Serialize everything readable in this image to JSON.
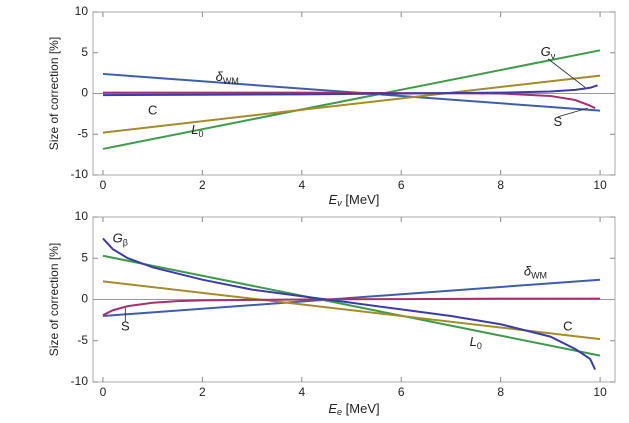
{
  "chart_data": [
    {
      "type": "line",
      "xlabel": {
        "main": "E",
        "sub": "ν",
        "unit": " [MeV]"
      },
      "ylabel": "Size of correction [%]",
      "xlim": [
        -0.2,
        10.3
      ],
      "ylim": [
        -10,
        10
      ],
      "xticks": [
        0,
        2,
        4,
        6,
        8,
        10
      ],
      "yticks": [
        -10,
        -5,
        0,
        5,
        10
      ],
      "series": [
        {
          "name": "δ",
          "name_sub": "WM",
          "color": "#3f5ea8",
          "x": [
            0,
            10
          ],
          "values": [
            2.4,
            -2.1
          ]
        },
        {
          "name": "L",
          "name_sub": "0",
          "color": "#3f9a4c",
          "x": [
            0,
            10
          ],
          "values": [
            -6.8,
            5.3
          ]
        },
        {
          "name": "C",
          "color": "#a28c2c",
          "x": [
            0,
            10
          ],
          "values": [
            -4.8,
            2.2
          ]
        },
        {
          "name": "S",
          "color": "#a3326c",
          "x": [
            0,
            2,
            4,
            6,
            8,
            9,
            9.5,
            9.8,
            9.9
          ],
          "values": [
            0.1,
            0.1,
            0.1,
            0.05,
            0,
            -0.3,
            -0.8,
            -1.5,
            -1.8
          ]
        },
        {
          "name": "G",
          "name_sub": "ν",
          "color": "#3c3ca8",
          "x": [
            0,
            2,
            4,
            6,
            8,
            9,
            9.5,
            9.8,
            9.95
          ],
          "values": [
            -0.2,
            -0.15,
            -0.1,
            0,
            0.1,
            0.25,
            0.45,
            0.7,
            1.0
          ]
        }
      ]
    },
    {
      "type": "line",
      "xlabel": {
        "main": "E",
        "sub": "e",
        "unit": " [MeV]"
      },
      "ylabel": "Size of correction [%]",
      "xlim": [
        -0.2,
        10.3
      ],
      "ylim": [
        -10,
        10
      ],
      "xticks": [
        0,
        2,
        4,
        6,
        8,
        10
      ],
      "yticks": [
        -10,
        -5,
        0,
        5,
        10
      ],
      "series": [
        {
          "name": "δ",
          "name_sub": "WM",
          "color": "#3f5ea8",
          "x": [
            0,
            10
          ],
          "values": [
            -2.0,
            2.4
          ]
        },
        {
          "name": "L",
          "name_sub": "0",
          "color": "#3f9a4c",
          "x": [
            0,
            10
          ],
          "values": [
            5.3,
            -6.8
          ]
        },
        {
          "name": "C",
          "color": "#a28c2c",
          "x": [
            0,
            10
          ],
          "values": [
            2.2,
            -4.8
          ]
        },
        {
          "name": "S",
          "color": "#a3326c",
          "x": [
            0,
            0.2,
            0.5,
            1,
            1.5,
            2,
            4,
            6,
            8,
            10
          ],
          "values": [
            -1.9,
            -1.3,
            -0.8,
            -0.4,
            -0.2,
            -0.1,
            0,
            0.05,
            0.1,
            0.1
          ]
        },
        {
          "name": "G",
          "name_sub": "β",
          "color": "#3c3ca8",
          "x": [
            0,
            0.2,
            0.5,
            1,
            2,
            3,
            4,
            5,
            6,
            7,
            8,
            9,
            9.5,
            9.8,
            9.9
          ],
          "values": [
            7.4,
            6.1,
            5.0,
            3.9,
            2.4,
            1.2,
            0.4,
            -0.4,
            -1.2,
            -2.0,
            -3.0,
            -4.5,
            -6.0,
            -7.2,
            -8.5
          ]
        }
      ]
    }
  ]
}
